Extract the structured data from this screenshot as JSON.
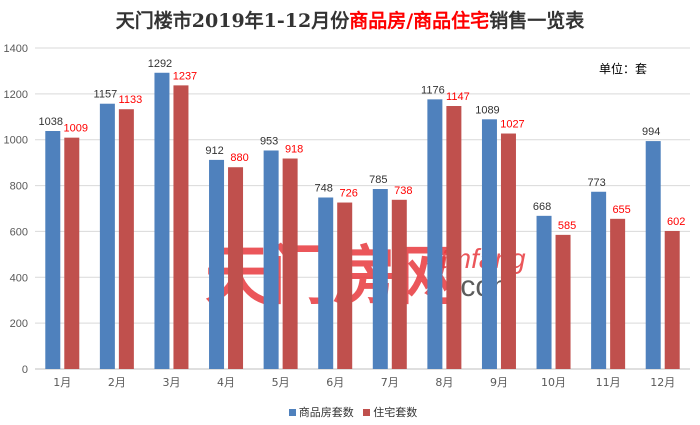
{
  "chart_data": {
    "type": "bar",
    "title_parts": [
      "天门楼市2019年1-12月份",
      "商品房/商品住宅",
      "销售一览表"
    ],
    "unit_label": "单位：套",
    "categories": [
      "1月",
      "2月",
      "3月",
      "4月",
      "5月",
      "6月",
      "7月",
      "8月",
      "9月",
      "10月",
      "11月",
      "12月"
    ],
    "series": [
      {
        "name": "商品房套数",
        "color": "#4f81bd",
        "label_color": "#333333",
        "values": [
          1038,
          1157,
          1292,
          912,
          953,
          748,
          785,
          1176,
          1089,
          668,
          773,
          994
        ]
      },
      {
        "name": "住宅套数",
        "color": "#c0504d",
        "label_color": "#ff0000",
        "values": [
          1009,
          1133,
          1237,
          880,
          918,
          726,
          738,
          1147,
          1027,
          585,
          655,
          602
        ]
      }
    ],
    "ylim": [
      0,
      1400
    ],
    "yticks": [
      0,
      200,
      400,
      600,
      800,
      1000,
      1200,
      1400
    ],
    "grid": true,
    "legend_position": "bottom",
    "watermark": {
      "text_cn": "天门房网",
      "text_en": "tmfang",
      "text_dom": ".com"
    }
  }
}
